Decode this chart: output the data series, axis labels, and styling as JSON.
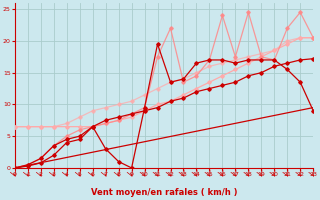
{
  "xlabel": "Vent moyen/en rafales ( km/h )",
  "bg_color": "#cce8ee",
  "grid_color": "#aacccc",
  "xlim": [
    0,
    23
  ],
  "ylim": [
    0,
    26
  ],
  "xticks": [
    0,
    1,
    2,
    3,
    4,
    5,
    6,
    7,
    8,
    9,
    10,
    11,
    12,
    13,
    14,
    15,
    16,
    17,
    18,
    19,
    20,
    21,
    22,
    23
  ],
  "yticks": [
    0,
    5,
    10,
    15,
    20,
    25
  ],
  "lines": [
    {
      "x": [
        0,
        23
      ],
      "y": [
        0,
        9.5
      ],
      "color": "#cc0000",
      "lw": 0.9,
      "marker": null,
      "ms": 0,
      "alpha": 1.0
    },
    {
      "x": [
        0,
        1,
        2,
        3,
        4,
        5,
        6,
        7,
        8,
        9,
        10,
        11,
        12,
        13,
        14,
        15,
        16,
        17,
        18,
        19,
        20,
        21,
        22,
        23
      ],
      "y": [
        6.5,
        6.5,
        6.5,
        6.5,
        6.5,
        6.5,
        6.5,
        7.0,
        7.5,
        8.0,
        9.0,
        10.0,
        10.5,
        11.5,
        12.5,
        13.5,
        14.5,
        15.5,
        16.5,
        17.5,
        18.5,
        19.5,
        20.5,
        20.5
      ],
      "color": "#ffaaaa",
      "lw": 0.9,
      "marker": "D",
      "ms": 1.8,
      "alpha": 1.0
    },
    {
      "x": [
        0,
        1,
        2,
        3,
        4,
        5,
        6,
        7,
        8,
        9,
        10,
        11,
        12,
        13,
        14,
        15,
        16,
        17,
        18,
        19,
        20,
        21,
        22,
        23
      ],
      "y": [
        6.5,
        6.5,
        6.5,
        6.5,
        7.0,
        8.0,
        9.0,
        9.5,
        10.0,
        10.5,
        11.5,
        12.5,
        13.5,
        14.0,
        15.0,
        16.0,
        16.5,
        17.0,
        17.5,
        18.0,
        18.5,
        20.0,
        20.5,
        20.5
      ],
      "color": "#ffaaaa",
      "lw": 0.9,
      "marker": "D",
      "ms": 1.8,
      "alpha": 0.75
    },
    {
      "x": [
        0,
        1,
        2,
        3,
        4,
        5,
        6,
        7,
        8,
        9,
        10,
        11,
        12,
        13,
        14,
        15,
        16,
        17,
        18,
        19,
        20,
        21,
        22,
        23
      ],
      "y": [
        0,
        0.5,
        1.5,
        3.5,
        5.0,
        6.0,
        6.5,
        7.0,
        7.5,
        8.5,
        9.5,
        17.5,
        22.0,
        13.5,
        14.5,
        17.0,
        24.0,
        17.5,
        24.5,
        17.5,
        17.0,
        22.0,
        24.5,
        20.5
      ],
      "color": "#ff8888",
      "lw": 0.9,
      "marker": "D",
      "ms": 1.8,
      "alpha": 0.85
    },
    {
      "x": [
        0,
        1,
        2,
        3,
        4,
        5,
        6,
        7,
        8,
        9,
        10,
        11,
        12,
        13,
        14,
        15,
        16,
        17,
        18,
        19,
        20,
        21,
        22,
        23
      ],
      "y": [
        0,
        0.3,
        0.8,
        2.0,
        4.0,
        4.5,
        6.5,
        7.5,
        8.0,
        8.5,
        9.0,
        9.5,
        10.5,
        11.0,
        12.0,
        12.5,
        13.0,
        13.5,
        14.5,
        15.0,
        16.0,
        16.5,
        17.0,
        17.2
      ],
      "color": "#cc0000",
      "lw": 0.9,
      "marker": "D",
      "ms": 1.8,
      "alpha": 1.0
    },
    {
      "x": [
        0,
        1,
        2,
        3,
        4,
        5,
        6,
        7,
        8,
        9,
        10,
        11,
        12,
        13,
        14,
        15,
        16,
        17,
        18,
        19,
        20,
        21,
        22,
        23
      ],
      "y": [
        0,
        0.5,
        1.5,
        3.5,
        4.5,
        5.0,
        6.5,
        3.0,
        1.0,
        0.0,
        9.5,
        19.5,
        13.5,
        14.0,
        16.5,
        17.0,
        17.0,
        16.5,
        17.0,
        17.0,
        17.0,
        15.5,
        13.5,
        9.0
      ],
      "color": "#cc0000",
      "lw": 0.9,
      "marker": "D",
      "ms": 1.8,
      "alpha": 1.0
    }
  ],
  "label_color": "#cc0000",
  "xlabel_color": "#cc0000",
  "axis_color": "#cc0000",
  "tick_color": "#cc0000"
}
